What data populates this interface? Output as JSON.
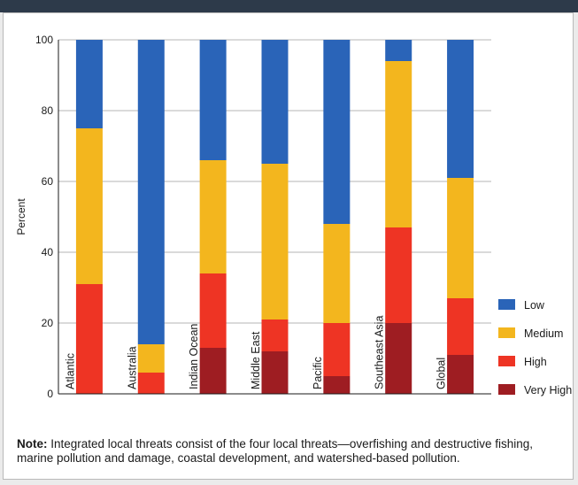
{
  "chart_data": {
    "type": "bar",
    "stacked": true,
    "title": "",
    "xlabel": "",
    "ylabel": "Percent",
    "ylim": [
      0,
      100
    ],
    "yticks": [
      0,
      20,
      40,
      60,
      80,
      100
    ],
    "grid": true,
    "legend_position": "right",
    "categories": [
      "Atlantic",
      "Australia",
      "Indian Ocean",
      "Middle East",
      "Pacific",
      "Southeast Asia",
      "Global"
    ],
    "series": [
      {
        "name": "Very High",
        "color": "#9e1d22",
        "values": [
          0,
          0,
          13,
          12,
          5,
          20,
          11
        ]
      },
      {
        "name": "High",
        "color": "#ee3424",
        "values": [
          31,
          6,
          21,
          9,
          15,
          27,
          16
        ]
      },
      {
        "name": "Medium",
        "color": "#f3b61e",
        "values": [
          44,
          8,
          32,
          44,
          28,
          47,
          34
        ]
      },
      {
        "name": "Low",
        "color": "#2a64b8",
        "values": [
          25,
          86,
          34,
          35,
          52,
          6,
          39
        ]
      }
    ],
    "legend_order": [
      "Low",
      "Medium",
      "High",
      "Very High"
    ]
  },
  "note": {
    "label": "Note:",
    "text": " Integrated local threats consist of the four local threats—overfishing and destructive fishing, marine pollution and damage, coastal development, and watershed-based pollution."
  }
}
